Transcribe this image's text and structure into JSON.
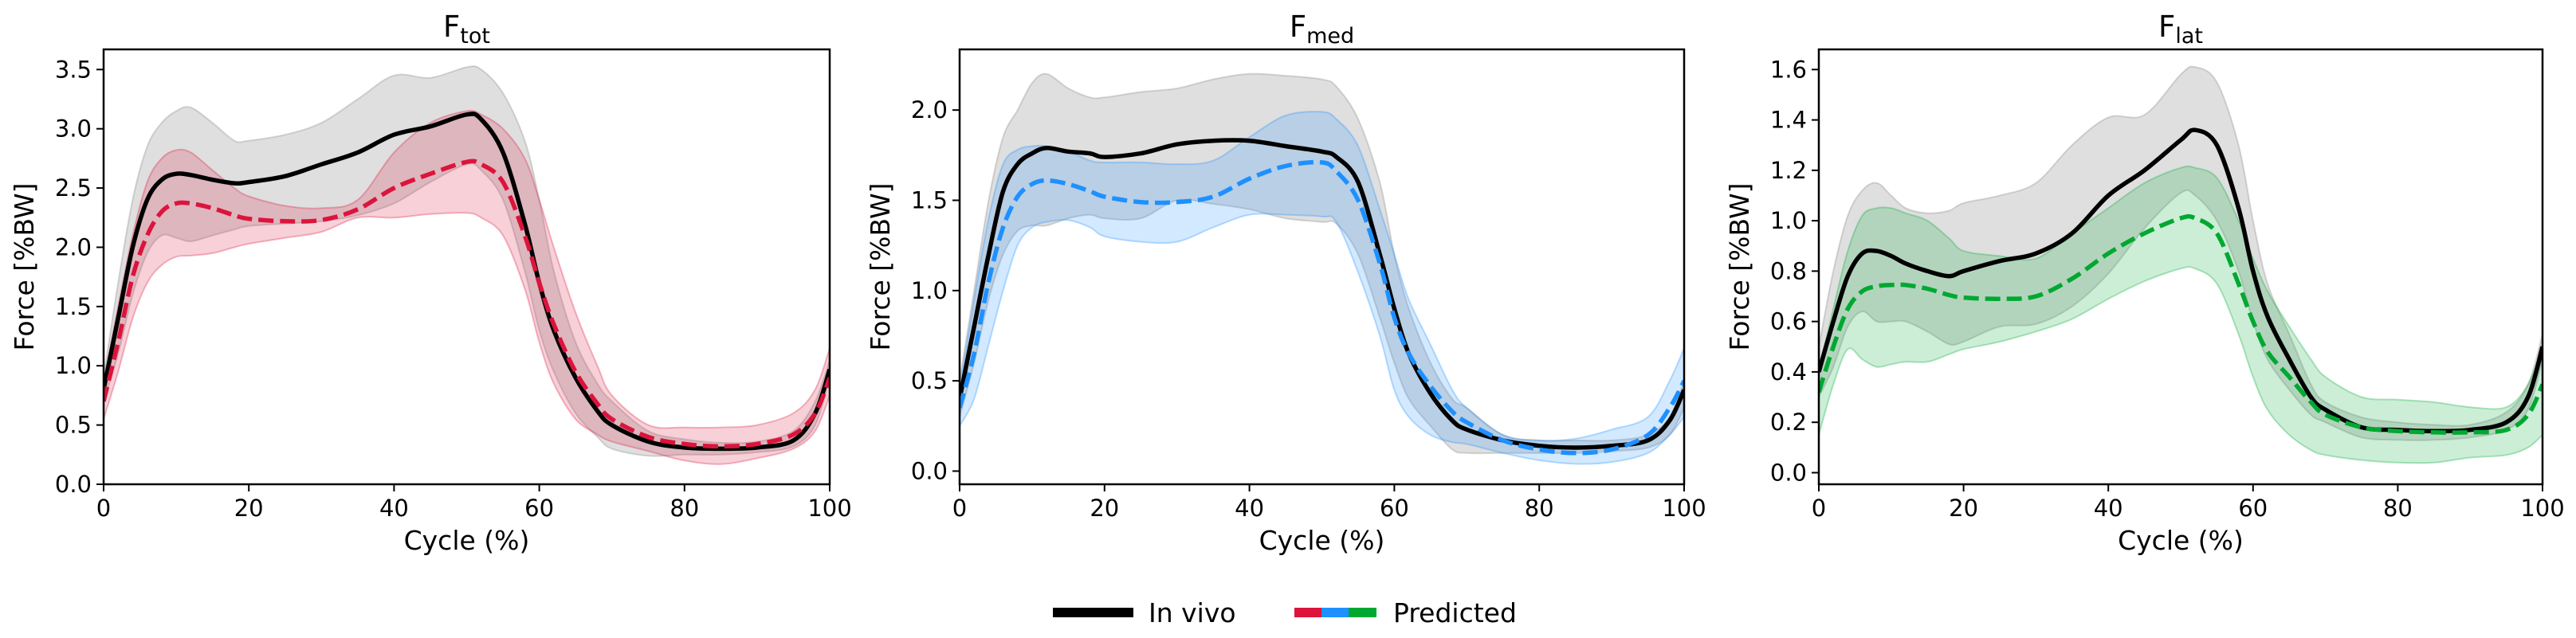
{
  "chart_data": [
    {
      "type": "line",
      "title": {
        "main": "F",
        "sub": "tot"
      },
      "xlabel": "Cycle (%)",
      "ylabel": "Force [%BW]",
      "xlim": [
        0,
        100
      ],
      "ylim": [
        0,
        3.67
      ],
      "xticks": [
        0,
        20,
        40,
        60,
        80,
        100
      ],
      "yticks": [
        "0.0",
        "0.5",
        "1.0",
        "1.5",
        "2.0",
        "2.5",
        "3.0",
        "3.5"
      ],
      "pred_color": "#DC143C",
      "x": [
        0,
        2,
        4,
        6,
        8,
        10,
        12,
        15,
        18,
        20,
        25,
        30,
        35,
        40,
        45,
        50,
        52,
        55,
        58,
        60,
        62,
        65,
        68,
        70,
        75,
        80,
        85,
        90,
        95,
        98,
        100
      ],
      "series": [
        {
          "name": "In vivo",
          "style": "solid",
          "mean": [
            0.8,
            1.4,
            2.0,
            2.4,
            2.57,
            2.62,
            2.61,
            2.57,
            2.54,
            2.55,
            2.6,
            2.7,
            2.8,
            2.95,
            3.02,
            3.12,
            3.08,
            2.8,
            2.2,
            1.7,
            1.3,
            0.9,
            0.62,
            0.5,
            0.36,
            0.31,
            0.3,
            0.31,
            0.37,
            0.6,
            0.97
          ],
          "upper": [
            0.9,
            1.7,
            2.4,
            2.85,
            3.05,
            3.15,
            3.18,
            3.05,
            2.9,
            2.9,
            2.95,
            3.05,
            3.25,
            3.45,
            3.43,
            3.52,
            3.5,
            3.3,
            2.9,
            2.4,
            1.8,
            1.2,
            0.85,
            0.7,
            0.45,
            0.38,
            0.35,
            0.36,
            0.45,
            0.7,
            1.05
          ],
          "lower": [
            0.7,
            1.1,
            1.6,
            1.95,
            2.1,
            2.08,
            2.05,
            2.1,
            2.15,
            2.18,
            2.2,
            2.22,
            2.27,
            2.37,
            2.55,
            2.7,
            2.65,
            2.4,
            1.8,
            1.3,
            0.95,
            0.6,
            0.4,
            0.3,
            0.24,
            0.25,
            0.25,
            0.27,
            0.32,
            0.5,
            0.9
          ]
        },
        {
          "name": "Predicted",
          "style": "dashed",
          "mean": [
            0.7,
            1.2,
            1.75,
            2.1,
            2.3,
            2.37,
            2.37,
            2.33,
            2.27,
            2.24,
            2.22,
            2.23,
            2.32,
            2.5,
            2.62,
            2.72,
            2.7,
            2.55,
            2.1,
            1.7,
            1.35,
            0.95,
            0.68,
            0.55,
            0.4,
            0.34,
            0.32,
            0.34,
            0.42,
            0.6,
            0.9
          ],
          "upper": [
            0.85,
            1.5,
            2.1,
            2.55,
            2.75,
            2.82,
            2.8,
            2.65,
            2.5,
            2.43,
            2.35,
            2.33,
            2.4,
            2.8,
            3.05,
            3.15,
            3.12,
            3.0,
            2.75,
            2.4,
            2.0,
            1.45,
            1.0,
            0.75,
            0.5,
            0.48,
            0.48,
            0.5,
            0.6,
            0.8,
            1.15
          ],
          "lower": [
            0.55,
            0.95,
            1.4,
            1.7,
            1.85,
            1.92,
            1.93,
            1.95,
            2.0,
            2.03,
            2.08,
            2.13,
            2.25,
            2.25,
            2.28,
            2.29,
            2.25,
            2.1,
            1.65,
            1.2,
            0.85,
            0.55,
            0.42,
            0.36,
            0.28,
            0.2,
            0.17,
            0.22,
            0.3,
            0.45,
            0.75
          ]
        }
      ]
    },
    {
      "type": "line",
      "title": {
        "main": "F",
        "sub": "med"
      },
      "xlabel": "Cycle (%)",
      "ylabel": "Force [%BW]",
      "xlim": [
        0,
        100
      ],
      "ylim": [
        -0.073,
        2.336
      ],
      "xticks": [
        0,
        20,
        40,
        60,
        80,
        100
      ],
      "yticks": [
        "0.0",
        "0.5",
        "1.0",
        "1.5",
        "2.0"
      ],
      "pred_color": "#1E90FF",
      "x": [
        0,
        2,
        4,
        6,
        8,
        10,
        12,
        15,
        18,
        20,
        25,
        30,
        35,
        40,
        45,
        50,
        52,
        55,
        58,
        60,
        62,
        65,
        68,
        70,
        75,
        80,
        85,
        90,
        95,
        98,
        100
      ],
      "series": [
        {
          "name": "In vivo",
          "style": "solid",
          "mean": [
            0.4,
            0.8,
            1.2,
            1.55,
            1.7,
            1.76,
            1.79,
            1.77,
            1.76,
            1.74,
            1.76,
            1.81,
            1.83,
            1.83,
            1.8,
            1.77,
            1.74,
            1.6,
            1.2,
            0.9,
            0.65,
            0.43,
            0.28,
            0.23,
            0.17,
            0.14,
            0.13,
            0.14,
            0.17,
            0.28,
            0.45
          ],
          "upper": [
            0.5,
            1.0,
            1.5,
            1.85,
            2.0,
            2.15,
            2.2,
            2.12,
            2.07,
            2.07,
            2.1,
            2.12,
            2.17,
            2.2,
            2.19,
            2.17,
            2.13,
            1.95,
            1.6,
            1.2,
            0.9,
            0.6,
            0.4,
            0.35,
            0.2,
            0.17,
            0.17,
            0.17,
            0.2,
            0.3,
            0.5
          ],
          "lower": [
            0.3,
            0.6,
            0.95,
            1.2,
            1.33,
            1.36,
            1.36,
            1.4,
            1.42,
            1.4,
            1.4,
            1.5,
            1.48,
            1.45,
            1.4,
            1.38,
            1.37,
            1.2,
            0.85,
            0.6,
            0.4,
            0.25,
            0.12,
            0.1,
            0.1,
            0.1,
            0.1,
            0.11,
            0.13,
            0.2,
            0.35
          ]
        },
        {
          "name": "Predicted",
          "style": "dashed",
          "mean": [
            0.35,
            0.65,
            1.05,
            1.35,
            1.52,
            1.59,
            1.61,
            1.59,
            1.55,
            1.52,
            1.49,
            1.49,
            1.52,
            1.62,
            1.69,
            1.71,
            1.66,
            1.5,
            1.15,
            0.85,
            0.65,
            0.47,
            0.33,
            0.27,
            0.17,
            0.12,
            0.1,
            0.12,
            0.2,
            0.35,
            0.5
          ],
          "upper": [
            0.45,
            0.95,
            1.4,
            1.7,
            1.78,
            1.8,
            1.8,
            1.77,
            1.72,
            1.71,
            1.71,
            1.7,
            1.72,
            1.85,
            1.97,
            1.99,
            1.95,
            1.8,
            1.45,
            1.2,
            0.95,
            0.7,
            0.45,
            0.35,
            0.2,
            0.17,
            0.18,
            0.23,
            0.3,
            0.5,
            0.68
          ],
          "lower": [
            0.25,
            0.4,
            0.7,
            1.0,
            1.25,
            1.35,
            1.38,
            1.39,
            1.35,
            1.3,
            1.27,
            1.27,
            1.35,
            1.42,
            1.42,
            1.41,
            1.38,
            1.1,
            0.75,
            0.45,
            0.3,
            0.2,
            0.16,
            0.15,
            0.1,
            0.06,
            0.04,
            0.05,
            0.1,
            0.2,
            0.3
          ]
        }
      ]
    },
    {
      "type": "line",
      "title": {
        "main": "F",
        "sub": "lat"
      },
      "xlabel": "Cycle (%)",
      "ylabel": "Force [%BW]",
      "xlim": [
        0,
        100
      ],
      "ylim": [
        -0.046,
        1.68
      ],
      "xticks": [
        0,
        20,
        40,
        60,
        80,
        100
      ],
      "yticks": [
        "0.0",
        "0.2",
        "0.4",
        "0.6",
        "0.8",
        "1.0",
        "1.2",
        "1.4",
        "1.6"
      ],
      "pred_color": "#00A832",
      "x": [
        0,
        2,
        4,
        6,
        8,
        10,
        12,
        15,
        18,
        20,
        25,
        30,
        35,
        40,
        45,
        50,
        52,
        55,
        58,
        60,
        62,
        65,
        68,
        70,
        75,
        80,
        85,
        90,
        95,
        98,
        100
      ],
      "series": [
        {
          "name": "In vivo",
          "style": "solid",
          "mean": [
            0.4,
            0.6,
            0.78,
            0.87,
            0.88,
            0.86,
            0.83,
            0.8,
            0.78,
            0.8,
            0.84,
            0.87,
            0.95,
            1.1,
            1.2,
            1.32,
            1.36,
            1.3,
            1.05,
            0.8,
            0.62,
            0.45,
            0.3,
            0.25,
            0.18,
            0.17,
            0.165,
            0.17,
            0.2,
            0.3,
            0.5
          ],
          "upper": [
            0.5,
            0.8,
            1.02,
            1.12,
            1.15,
            1.1,
            1.05,
            1.03,
            1.04,
            1.07,
            1.1,
            1.15,
            1.3,
            1.41,
            1.42,
            1.58,
            1.61,
            1.55,
            1.3,
            1.0,
            0.75,
            0.55,
            0.35,
            0.28,
            0.22,
            0.2,
            0.19,
            0.19,
            0.24,
            0.35,
            0.55
          ],
          "lower": [
            0.3,
            0.42,
            0.58,
            0.64,
            0.6,
            0.6,
            0.6,
            0.56,
            0.51,
            0.52,
            0.58,
            0.59,
            0.66,
            0.79,
            0.97,
            1.11,
            1.1,
            1.0,
            0.8,
            0.6,
            0.45,
            0.33,
            0.23,
            0.2,
            0.14,
            0.13,
            0.13,
            0.14,
            0.17,
            0.25,
            0.45
          ]
        },
        {
          "name": "Predicted",
          "style": "dashed",
          "mean": [
            0.32,
            0.5,
            0.65,
            0.72,
            0.74,
            0.745,
            0.745,
            0.73,
            0.705,
            0.695,
            0.69,
            0.7,
            0.77,
            0.87,
            0.95,
            1.01,
            1.01,
            0.95,
            0.75,
            0.6,
            0.48,
            0.38,
            0.28,
            0.23,
            0.18,
            0.165,
            0.16,
            0.16,
            0.17,
            0.23,
            0.35
          ],
          "upper": [
            0.4,
            0.65,
            0.88,
            1.02,
            1.05,
            1.05,
            1.03,
            1.0,
            0.93,
            0.88,
            0.86,
            0.85,
            0.95,
            1.05,
            1.15,
            1.21,
            1.21,
            1.17,
            1.0,
            0.85,
            0.72,
            0.58,
            0.45,
            0.38,
            0.3,
            0.29,
            0.28,
            0.26,
            0.26,
            0.35,
            0.5
          ],
          "lower": [
            0.15,
            0.35,
            0.49,
            0.45,
            0.42,
            0.43,
            0.44,
            0.44,
            0.47,
            0.49,
            0.52,
            0.56,
            0.61,
            0.69,
            0.76,
            0.81,
            0.81,
            0.75,
            0.55,
            0.38,
            0.25,
            0.15,
            0.09,
            0.07,
            0.05,
            0.04,
            0.04,
            0.06,
            0.07,
            0.1,
            0.15
          ]
        }
      ]
    }
  ],
  "legend": {
    "position": "bottom-center",
    "items": [
      {
        "label": "In vivo",
        "colors": [
          "#000000"
        ]
      },
      {
        "label": "Predicted",
        "colors": [
          "#DC143C",
          "#1E90FF",
          "#00A832"
        ]
      }
    ]
  }
}
